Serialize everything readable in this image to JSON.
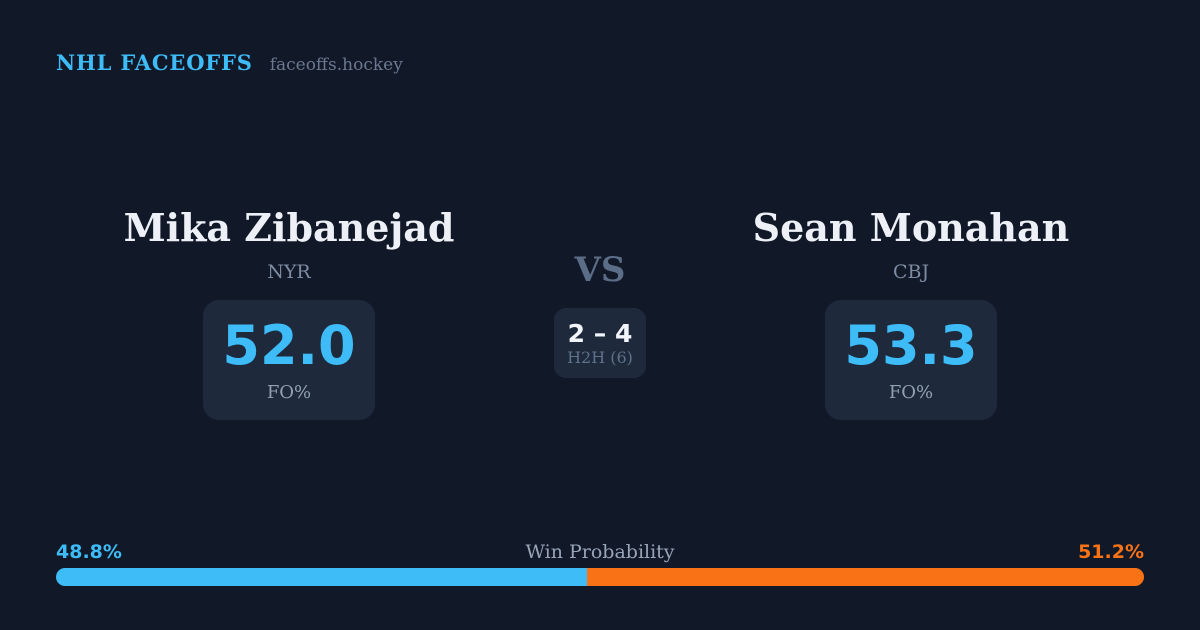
{
  "colors": {
    "background": "#111827",
    "card": "#1e2a3c",
    "accent_blue": "#3dbcf8",
    "accent_orange": "#f97316",
    "text_primary": "#edf1f7",
    "text_muted": "#6b7890"
  },
  "header": {
    "brand": "NHL FACEOFFS",
    "site": "faceoffs.hockey"
  },
  "matchup": {
    "vs_label": "VS",
    "h2h": {
      "score": "2 – 4",
      "label": "H2H (6)"
    },
    "players": [
      {
        "name": "Mika Zibanejad",
        "team": "NYR",
        "fo_pct": "52.0",
        "stat_label": "FO%"
      },
      {
        "name": "Sean Monahan",
        "team": "CBJ",
        "fo_pct": "53.3",
        "stat_label": "FO%"
      }
    ]
  },
  "win_probability": {
    "title": "Win Probability",
    "left_pct_label": "48.8%",
    "right_pct_label": "51.2%",
    "left_value": 48.8,
    "right_value": 51.2
  },
  "chart_data": {
    "type": "bar",
    "title": "Win Probability",
    "categories": [
      "Mika Zibanejad (NYR)",
      "Sean Monahan (CBJ)"
    ],
    "values": [
      48.8,
      51.2
    ],
    "colors": [
      "#3dbcf8",
      "#f97316"
    ],
    "xlabel": "",
    "ylabel": "Win Probability (%)",
    "ylim": [
      0,
      100
    ]
  }
}
